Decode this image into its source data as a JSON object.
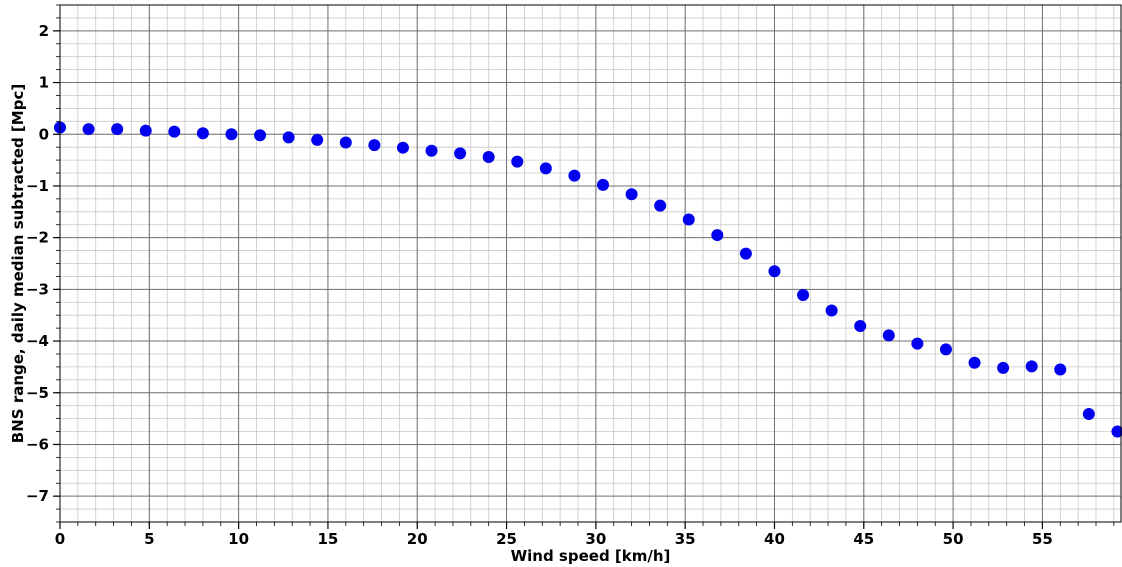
{
  "chart_data": {
    "type": "scatter",
    "xlabel": "Wind speed [km/h]",
    "ylabel": "BNS range, daily median subtracted [Mpc]",
    "xlim": [
      0,
      59.4
    ],
    "ylim": [
      -7.5,
      2.5
    ],
    "x_major_ticks": [
      0,
      5,
      10,
      15,
      20,
      25,
      30,
      35,
      40,
      45,
      50,
      55
    ],
    "x_tick_labels": [
      "0",
      "5",
      "10",
      "15",
      "20",
      "25",
      "30",
      "35",
      "40",
      "45",
      "50",
      "55"
    ],
    "y_major_ticks": [
      2,
      1,
      0,
      -1,
      -2,
      -3,
      -4,
      -5,
      -6,
      -7
    ],
    "y_tick_labels": [
      "2",
      "1",
      "0",
      "−1",
      "−2",
      "−3",
      "−4",
      "−5",
      "−6",
      "−7"
    ],
    "x_minor_step": 1,
    "y_minor_step": 0.25,
    "grid": true,
    "marker_color": "#0000ee",
    "points": [
      {
        "x": 0.0,
        "y": 0.13
      },
      {
        "x": 1.6,
        "y": 0.1
      },
      {
        "x": 3.2,
        "y": 0.1
      },
      {
        "x": 4.8,
        "y": 0.07
      },
      {
        "x": 6.4,
        "y": 0.05
      },
      {
        "x": 8.0,
        "y": 0.02
      },
      {
        "x": 9.6,
        "y": 0.0
      },
      {
        "x": 11.2,
        "y": -0.02
      },
      {
        "x": 12.8,
        "y": -0.06
      },
      {
        "x": 14.4,
        "y": -0.11
      },
      {
        "x": 16.0,
        "y": -0.16
      },
      {
        "x": 17.6,
        "y": -0.21
      },
      {
        "x": 19.2,
        "y": -0.26
      },
      {
        "x": 20.8,
        "y": -0.32
      },
      {
        "x": 22.4,
        "y": -0.37
      },
      {
        "x": 24.0,
        "y": -0.44
      },
      {
        "x": 25.6,
        "y": -0.53
      },
      {
        "x": 27.2,
        "y": -0.66
      },
      {
        "x": 28.8,
        "y": -0.8
      },
      {
        "x": 30.4,
        "y": -0.98
      },
      {
        "x": 32.0,
        "y": -1.16
      },
      {
        "x": 33.6,
        "y": -1.38
      },
      {
        "x": 35.2,
        "y": -1.65
      },
      {
        "x": 36.8,
        "y": -1.95
      },
      {
        "x": 38.4,
        "y": -2.31
      },
      {
        "x": 40.0,
        "y": -2.65
      },
      {
        "x": 41.6,
        "y": -3.11
      },
      {
        "x": 43.2,
        "y": -3.41
      },
      {
        "x": 44.8,
        "y": -3.71
      },
      {
        "x": 46.4,
        "y": -3.89
      },
      {
        "x": 48.0,
        "y": -4.05
      },
      {
        "x": 49.6,
        "y": -4.16
      },
      {
        "x": 51.2,
        "y": -4.42
      },
      {
        "x": 52.8,
        "y": -4.52
      },
      {
        "x": 54.4,
        "y": -4.49
      },
      {
        "x": 56.0,
        "y": -4.55
      },
      {
        "x": 57.6,
        "y": -5.41
      },
      {
        "x": 59.2,
        "y": -5.75
      }
    ]
  }
}
